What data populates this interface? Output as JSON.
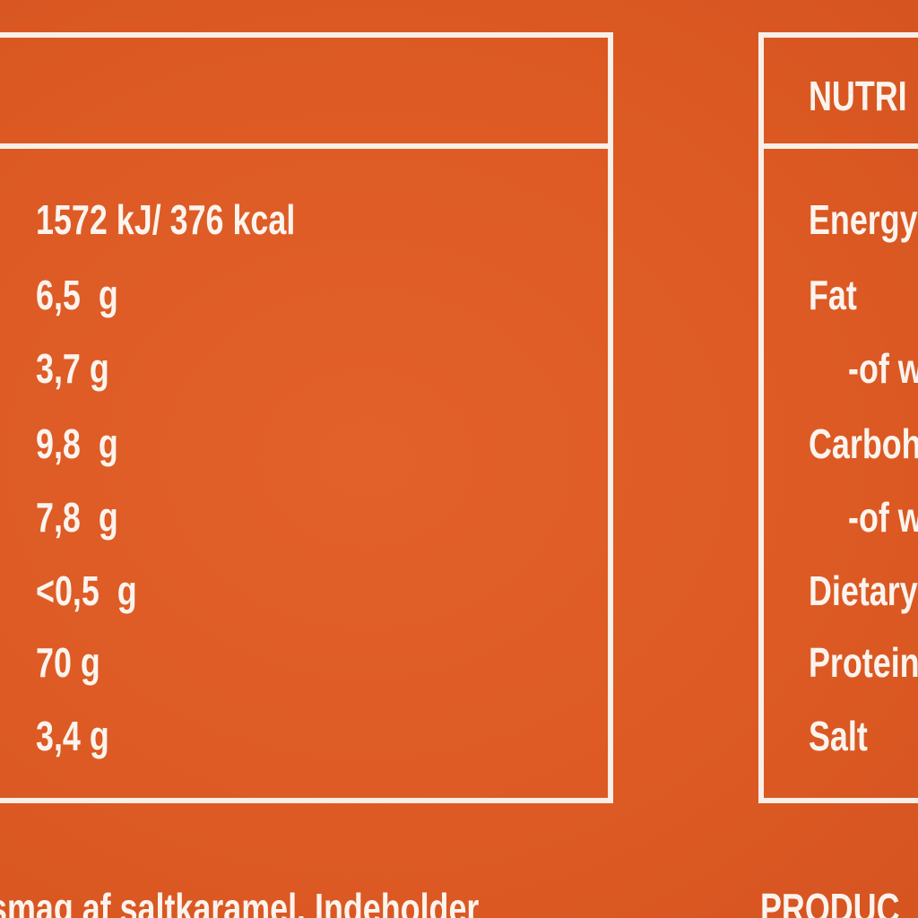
{
  "left_panel": {
    "values": [
      "1572 kJ/ 376 kcal",
      "6,5  g",
      "3,7 g",
      "9,8  g",
      "7,8  g",
      "<0,5  g",
      "70 g",
      "3,4 g"
    ]
  },
  "right_panel": {
    "header": "NUTRI",
    "labels": [
      "Energy",
      "Fat",
      "-of w",
      "Carboh",
      "-of w",
      "Dietary",
      "Protein",
      "Salt"
    ]
  },
  "bottom": {
    "left_text": "smag af saltkaramel. Indeholder",
    "right_text": "PRODUC"
  }
}
